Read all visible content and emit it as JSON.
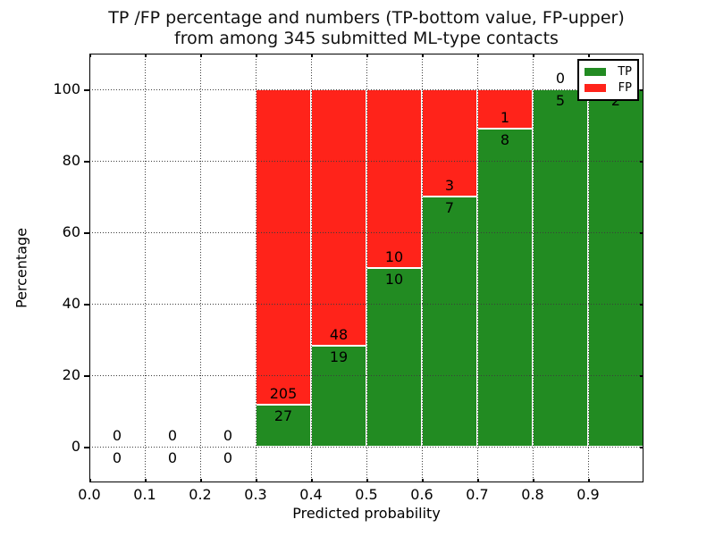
{
  "title": {
    "line1": "TP /FP percentage and numbers (TP-bottom value, FP-upper)",
    "line2": "from among 345 submitted ML-type contacts"
  },
  "chart_data": {
    "type": "bar",
    "stacked": true,
    "title": "TP /FP percentage and numbers (TP-bottom value, FP-upper) from among 345 submitted ML-type contacts",
    "xlabel": "Predicted probability",
    "ylabel": "Percentage",
    "total_contacts": 345,
    "bins": [
      0.0,
      0.1,
      0.2,
      0.3,
      0.4,
      0.5,
      0.6,
      0.7,
      0.8,
      0.9
    ],
    "bin_width": 0.1,
    "series": [
      {
        "name": "TP",
        "color": "#228b22",
        "counts": [
          0,
          0,
          0,
          27,
          19,
          10,
          7,
          8,
          5,
          2
        ]
      },
      {
        "name": "FP",
        "color": "#ff231a",
        "counts": [
          0,
          0,
          0,
          205,
          48,
          10,
          3,
          1,
          0,
          0
        ]
      }
    ],
    "tp_percent_of_bin": [
      0,
      0,
      0,
      11.64,
      28.36,
      50,
      70,
      88.89,
      100,
      100
    ],
    "bar_total_percent_when_nonempty": 100,
    "xlim": [
      0.0,
      1.0
    ],
    "ylim": [
      -10,
      110
    ],
    "xticks": [
      "0.0",
      "0.1",
      "0.2",
      "0.3",
      "0.4",
      "0.5",
      "0.6",
      "0.7",
      "0.8",
      "0.9"
    ],
    "yticks": [
      0,
      20,
      40,
      60,
      80,
      100
    ],
    "grid": "dotted",
    "legend": {
      "position": "upper right",
      "entries": [
        "TP",
        "FP"
      ]
    }
  }
}
